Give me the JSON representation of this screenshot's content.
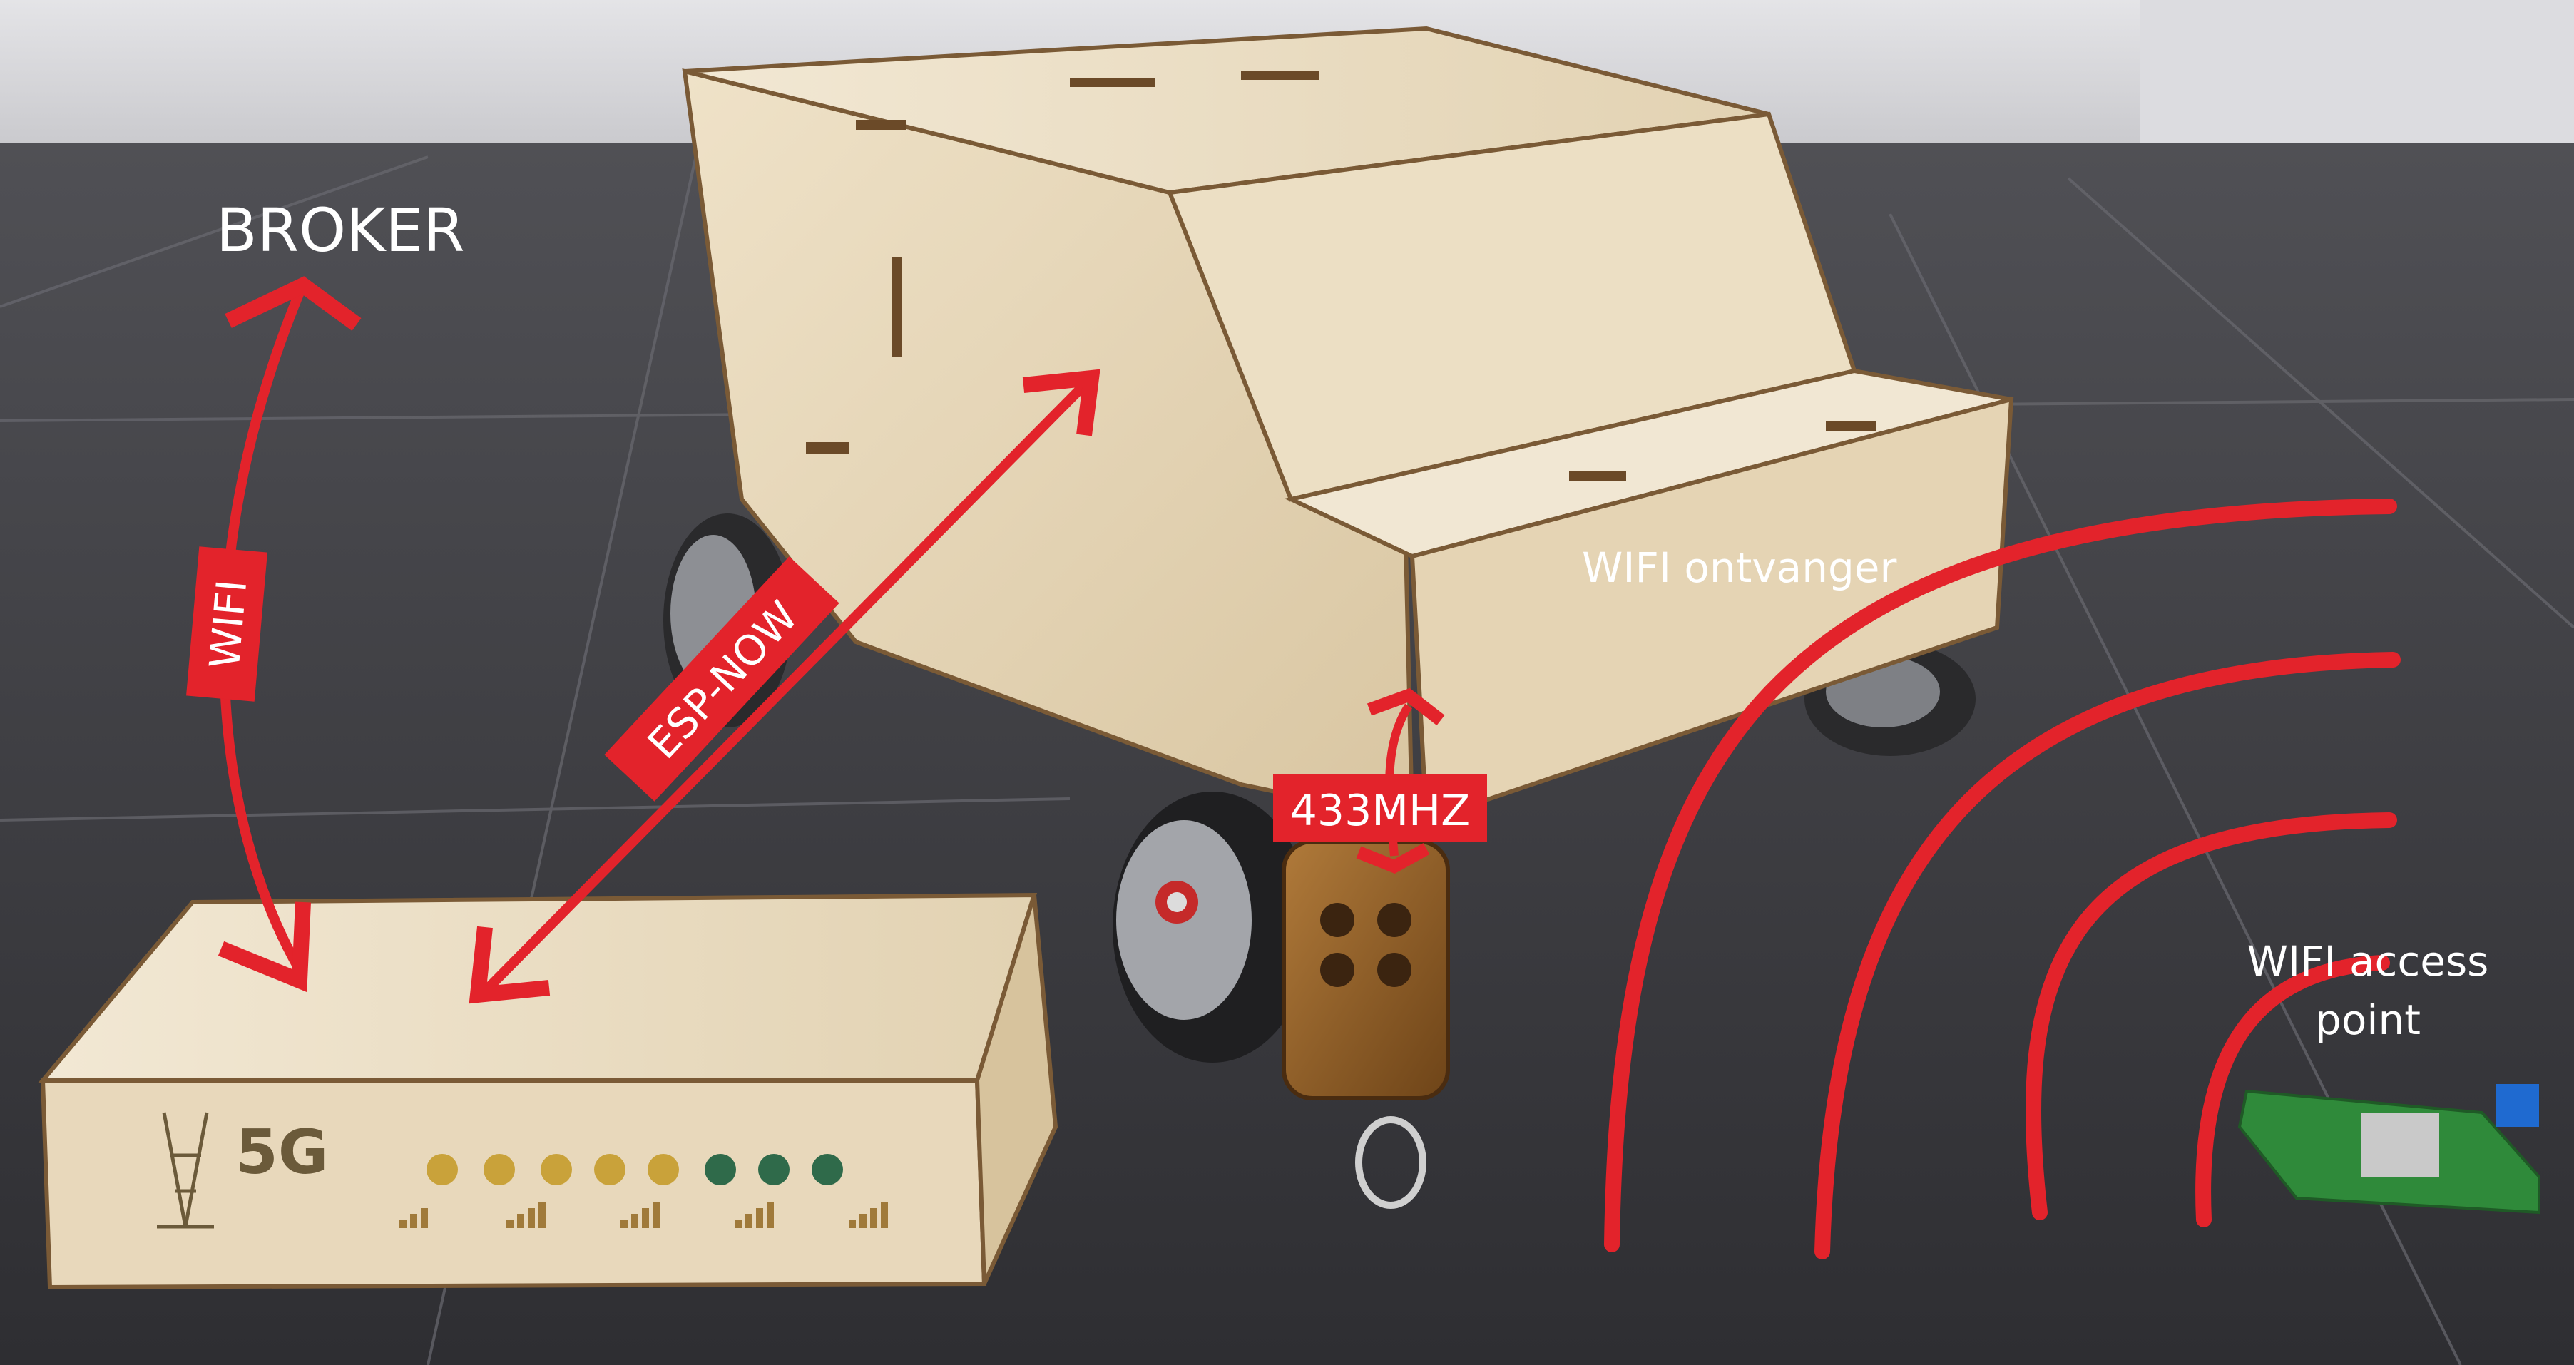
{
  "photo": {
    "subject": "laser-cut plywood robot car with mecanum wheels, plywood 5G box, 433MHz key fob remote and small WiFi access point PCB on dark tile floor"
  },
  "labels": {
    "broker": "BROKER",
    "wifi": "WIFI",
    "esp_now": "ESP-NOW",
    "mhz": "433MHZ",
    "wifi_receiver": "WIFI ontvanger",
    "access_point_line1": "WIFI access",
    "access_point_line2": "point"
  },
  "box": {
    "engraving": "5G"
  },
  "colors": {
    "arrow_red": "#e3232b",
    "plywood": "#e6d6b8",
    "floor": "#3a3a3e",
    "wall": "#d9d9dc"
  }
}
